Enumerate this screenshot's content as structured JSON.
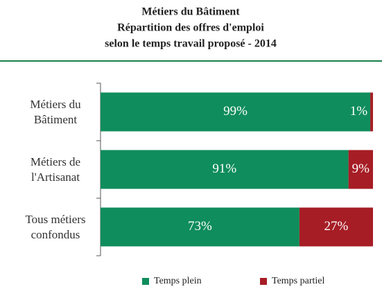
{
  "chart_data": {
    "type": "stacked_barh",
    "title": [
      "Métiers du Bâtiment",
      "Répartition des offres d'emploi",
      "selon le temps travail proposé - 2014"
    ],
    "categories": [
      "Métiers du Bâtiment",
      "Métiers de l'Artisanat",
      "Tous métiers confondus"
    ],
    "xlim": [
      0,
      100
    ],
    "series": [
      {
        "name": "Temps plein",
        "color": "#0f8d5c",
        "values": [
          99,
          91,
          73
        ],
        "value_labels": [
          "99%",
          "91%",
          "73%"
        ]
      },
      {
        "name": "Temps partiel",
        "color": "#a61d25",
        "values": [
          1,
          9,
          27
        ],
        "value_labels": [
          "1%",
          "9%",
          "27%"
        ]
      }
    ],
    "legend": "bottom"
  }
}
